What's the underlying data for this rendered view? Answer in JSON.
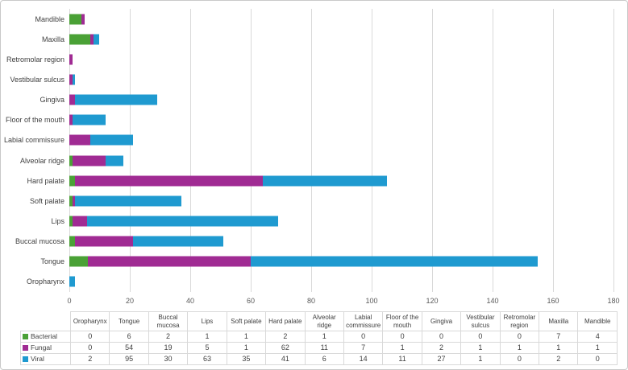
{
  "colors": {
    "bacterial": "#4AA136",
    "fungal": "#A02B93",
    "viral": "#1F9AD0",
    "gridline": "#D9D9D9",
    "tick_text": "#595959",
    "label_text": "#404040",
    "table_border": "#D9D9D9",
    "figure_border": "#C9C9C9"
  },
  "chart_data": {
    "type": "bar",
    "orientation": "horizontal",
    "stacked": true,
    "title": "",
    "xlabel": "",
    "ylabel": "",
    "grid": true,
    "xlim": [
      0,
      180
    ],
    "xticks": [
      0,
      20,
      40,
      60,
      80,
      100,
      120,
      140,
      160,
      180
    ],
    "categories": [
      "Mandible",
      "Maxilla",
      "Retromolar region",
      "Vestibular sulcus",
      "Gingiva",
      "Floor of the mouth",
      "Labial commissure",
      "Alveolar ridge",
      "Hard palate",
      "Soft palate",
      "Lips",
      "Buccal mucosa",
      "Tongue",
      "Oropharynx"
    ],
    "series": [
      {
        "name": "Bacterial",
        "color": "#4AA136",
        "values": [
          4,
          7,
          0,
          0,
          0,
          0,
          0,
          1,
          2,
          1,
          1,
          2,
          6,
          0
        ]
      },
      {
        "name": "Fungal",
        "color": "#A02B93",
        "values": [
          1,
          1,
          1,
          1,
          2,
          1,
          7,
          11,
          62,
          1,
          5,
          19,
          54,
          0
        ]
      },
      {
        "name": "Viral",
        "color": "#1F9AD0",
        "values": [
          0,
          2,
          0,
          1,
          27,
          11,
          14,
          6,
          41,
          35,
          63,
          30,
          95,
          2
        ]
      }
    ],
    "legend_position": "bottom-table"
  },
  "table": {
    "columns": [
      "Oropharynx",
      "Tongue",
      "Buccal mucosa",
      "Lips",
      "Soft palate",
      "Hard palate",
      "Alveolar ridge",
      "Labial commissure",
      "Floor of the mouth",
      "Gingiva",
      "Vestibular sulcus",
      "Retromolar region",
      "Maxilla",
      "Mandible"
    ],
    "rows": [
      {
        "label": "Bacterial",
        "color": "#4AA136",
        "values": [
          0,
          6,
          2,
          1,
          1,
          2,
          1,
          0,
          0,
          0,
          0,
          0,
          7,
          4
        ]
      },
      {
        "label": "Fungal",
        "color": "#A02B93",
        "values": [
          0,
          54,
          19,
          5,
          1,
          62,
          11,
          7,
          1,
          2,
          1,
          1,
          1,
          1
        ]
      },
      {
        "label": "Viral",
        "color": "#1F9AD0",
        "values": [
          2,
          95,
          30,
          63,
          35,
          41,
          6,
          14,
          11,
          27,
          1,
          0,
          2,
          0
        ]
      }
    ]
  }
}
